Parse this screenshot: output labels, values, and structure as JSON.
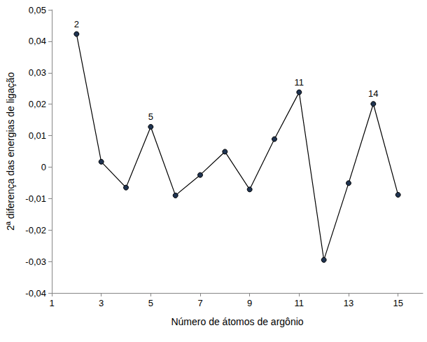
{
  "chart_data": {
    "type": "line",
    "x_label": "Número de átomos de argônio",
    "y_label": "2ª diferença das energias de ligação",
    "x": [
      2,
      3,
      4,
      5,
      6,
      7,
      8,
      9,
      10,
      11,
      12,
      13,
      14,
      15
    ],
    "values": [
      0.0423,
      0.0017,
      -0.0065,
      0.0128,
      -0.009,
      -0.0025,
      0.0049,
      -0.0071,
      0.0089,
      0.0238,
      -0.0295,
      -0.0051,
      0.0201,
      -0.0088
    ],
    "color": "#000000",
    "marker": "circle",
    "line_style": "solid",
    "annotations": [
      {
        "x": 2,
        "text": "2"
      },
      {
        "x": 5,
        "text": "5"
      },
      {
        "x": 11,
        "text": "11"
      },
      {
        "x": 14,
        "text": "14"
      }
    ],
    "xlim": [
      1,
      16
    ],
    "xticks": [
      1,
      3,
      5,
      7,
      9,
      11,
      13,
      15
    ],
    "ylim": [
      -0.04,
      0.05
    ],
    "yticks": [
      {
        "value": -0.04,
        "label": "-0,04"
      },
      {
        "value": -0.03,
        "label": "-0,03"
      },
      {
        "value": -0.02,
        "label": "-0,02"
      },
      {
        "value": -0.01,
        "label": "-0,01"
      },
      0,
      {
        "value": 0.01,
        "label": "0,01"
      },
      {
        "value": 0.02,
        "label": "0,02"
      },
      {
        "value": 0.03,
        "label": "0,03"
      },
      {
        "value": 0.04,
        "label": "0,04"
      },
      {
        "value": 0.05,
        "label": "0,05"
      }
    ],
    "grid": false
  }
}
